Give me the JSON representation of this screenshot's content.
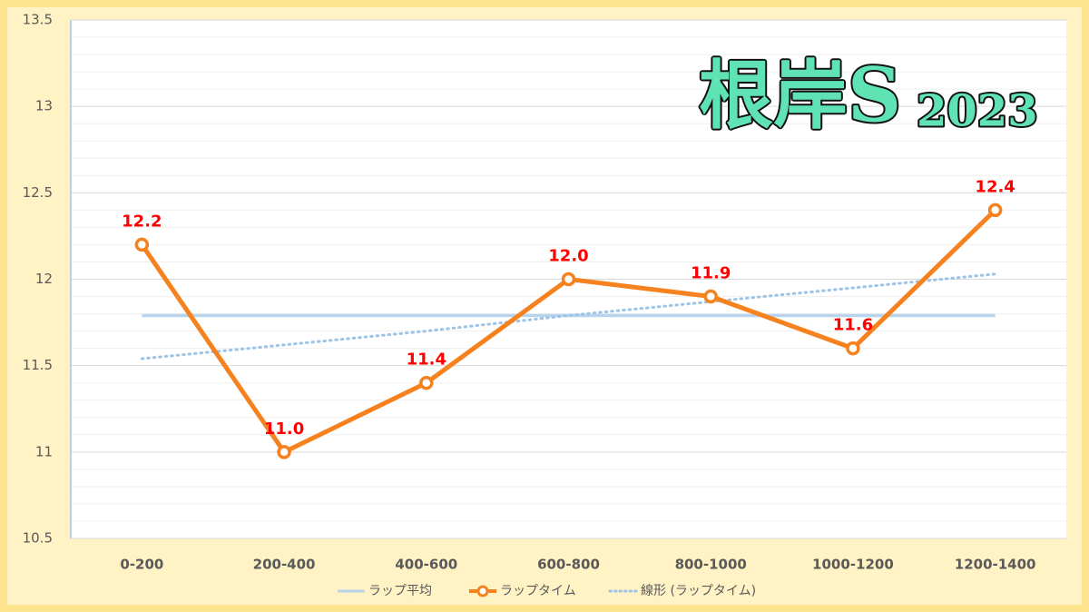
{
  "chart_data": {
    "type": "line",
    "title": "根岸S",
    "subtitle": "2023",
    "categories": [
      "0-200",
      "200-400",
      "400-600",
      "600-800",
      "800-1000",
      "1000-1200",
      "1200-1400"
    ],
    "series": [
      {
        "name": "ラップ平均",
        "color": "#b8d3ec",
        "style": "solid",
        "markers": false,
        "values": [
          11.79,
          11.79,
          11.79,
          11.79,
          11.79,
          11.79,
          11.79
        ]
      },
      {
        "name": "ラップタイム",
        "color": "#f5821f",
        "style": "solid",
        "markers": true,
        "values": [
          12.2,
          11.0,
          11.4,
          12.0,
          11.9,
          11.6,
          12.4
        ],
        "value_labels": [
          "12.2",
          "11.0",
          "11.4",
          "12.0",
          "11.9",
          "11.6",
          "12.4"
        ]
      },
      {
        "name": "線形 (ラップタイム)",
        "color": "#9dc3e6",
        "style": "dotted",
        "markers": false,
        "values": [
          11.54,
          11.62,
          11.7,
          11.79,
          11.87,
          11.95,
          12.03
        ]
      }
    ],
    "ylim": [
      10.5,
      13.5
    ],
    "yticks": [
      10.5,
      11,
      11.5,
      12,
      12.5,
      13,
      13.5
    ],
    "minor_yticks": [
      10.6,
      10.7,
      10.8,
      10.9,
      11.1,
      11.2,
      11.3,
      11.4,
      11.6,
      11.7,
      11.8,
      11.9,
      12.1,
      12.2,
      12.3,
      12.4,
      12.6,
      12.7,
      12.8,
      12.9,
      13.1,
      13.2,
      13.3,
      13.4
    ],
    "grid": true,
    "legend": "bottom"
  }
}
